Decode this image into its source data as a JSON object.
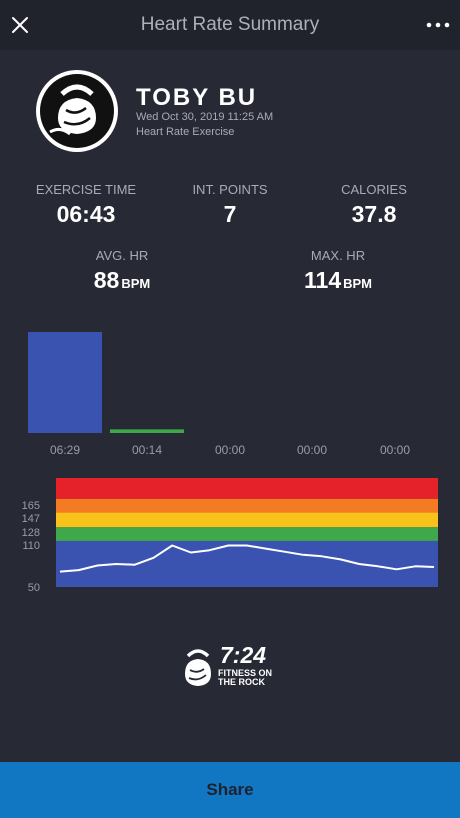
{
  "header": {
    "title": "Heart Rate Summary"
  },
  "profile": {
    "name": "TOBY BU",
    "date": "Wed Oct 30, 2019 11:25 AM",
    "activity": "Heart Rate Exercise"
  },
  "stats": {
    "exercise_time": {
      "label": "EXERCISE TIME",
      "value": "06:43"
    },
    "int_points": {
      "label": "INT. POINTS",
      "value": "7"
    },
    "calories": {
      "label": "CALORIES",
      "value": "37.8"
    },
    "avg_hr": {
      "label": "AVG. HR",
      "value": "88",
      "unit": "BPM"
    },
    "max_hr": {
      "label": "MAX. HR",
      "value": "114",
      "unit": "BPM"
    }
  },
  "chart_data": [
    {
      "type": "bar",
      "categories": [
        "06:29",
        "00:14",
        "00:00",
        "00:00",
        "00:00"
      ],
      "values": [
        389,
        14,
        0,
        0,
        0
      ],
      "colors": [
        "#3b53b0",
        "#3ea84a",
        "#e7b620",
        "#ee7a25",
        "#e3232b"
      ]
    },
    {
      "type": "line",
      "yticks": [
        165,
        147,
        128,
        110,
        50
      ],
      "ylim": [
        50,
        192
      ],
      "zones": [
        {
          "from": 50,
          "to": 110,
          "color": "#3b53b0"
        },
        {
          "from": 110,
          "to": 128,
          "color": "#3ea84a"
        },
        {
          "from": 128,
          "to": 147,
          "color": "#f9c21b"
        },
        {
          "from": 147,
          "to": 165,
          "color": "#f57a24"
        },
        {
          "from": 165,
          "to": 192,
          "color": "#e5222a"
        }
      ],
      "x": [
        0,
        5,
        10,
        15,
        20,
        25,
        30,
        35,
        40,
        45,
        50,
        55,
        60,
        65,
        70,
        75,
        80,
        85,
        90,
        95,
        100
      ],
      "y": [
        70,
        72,
        78,
        80,
        79,
        88,
        104,
        95,
        98,
        104,
        104,
        100,
        96,
        92,
        90,
        86,
        80,
        77,
        73,
        77,
        76
      ]
    }
  ],
  "logo": {
    "text": "7:24",
    "subtitle": "FITNESS ON THE ROCK"
  },
  "footer": {
    "share_label": "Share"
  }
}
